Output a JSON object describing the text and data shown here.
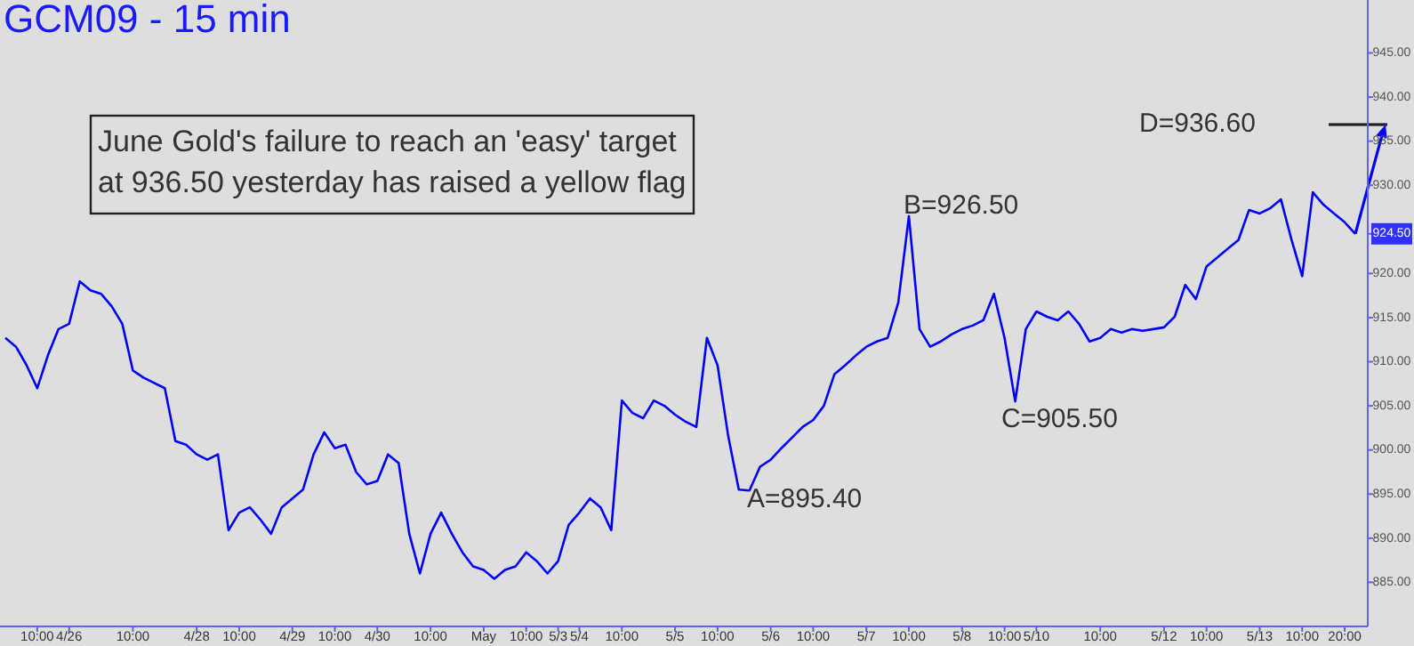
{
  "chart_data": {
    "type": "line",
    "title": "GCM09 - 15 min",
    "categories": [
      null,
      null,
      null,
      "10:00",
      null,
      null,
      "4/26",
      null,
      null,
      null,
      null,
      null,
      "10:00",
      null,
      null,
      null,
      null,
      null,
      "4/28",
      null,
      null,
      null,
      "10:00",
      null,
      null,
      null,
      null,
      "4/29",
      null,
      null,
      null,
      "10:00",
      null,
      null,
      null,
      "4/30",
      null,
      null,
      null,
      null,
      "10:00",
      null,
      null,
      null,
      null,
      "May",
      null,
      null,
      null,
      "10:00",
      null,
      null,
      "5/3",
      null,
      "5/4",
      null,
      null,
      null,
      "10:00",
      null,
      null,
      null,
      null,
      "5/5",
      null,
      null,
      null,
      "10:00",
      null,
      null,
      null,
      null,
      "5/6",
      null,
      null,
      null,
      "10:00",
      null,
      null,
      null,
      null,
      "5/7",
      null,
      null,
      null,
      "10:00",
      null,
      null,
      null,
      null,
      "5/8",
      null,
      null,
      null,
      "10:00",
      null,
      null,
      "5/10",
      null,
      null,
      null,
      null,
      null,
      "10:00",
      null,
      null,
      null,
      null,
      null,
      "5/12",
      null,
      null,
      null,
      "10:00",
      null,
      null,
      null,
      null,
      "5/13",
      null,
      null,
      null,
      "10:00",
      null,
      null,
      null,
      "20:00",
      null
    ],
    "values": [
      912.7,
      911.7,
      909.6,
      907.0,
      910.7,
      913.7,
      914.3,
      919.1,
      918.1,
      917.7,
      916.3,
      914.3,
      909.0,
      908.2,
      907.6,
      907.0,
      901.0,
      900.6,
      899.5,
      898.9,
      899.5,
      890.9,
      892.9,
      893.5,
      892.1,
      890.5,
      893.5,
      894.5,
      895.5,
      899.5,
      902.0,
      900.2,
      900.6,
      897.5,
      896.1,
      896.5,
      899.5,
      898.5,
      890.5,
      886.0,
      890.5,
      892.9,
      890.5,
      888.4,
      886.8,
      886.4,
      885.4,
      886.4,
      886.8,
      888.4,
      887.4,
      886.0,
      887.4,
      891.5,
      892.9,
      894.5,
      893.5,
      890.9,
      905.6,
      904.2,
      903.6,
      905.6,
      905.0,
      904.0,
      903.2,
      902.6,
      912.7,
      909.6,
      901.6,
      895.5,
      895.4,
      898.1,
      898.9,
      900.2,
      901.4,
      902.6,
      903.4,
      905.0,
      908.6,
      909.6,
      910.7,
      911.7,
      912.3,
      912.7,
      916.7,
      926.5,
      913.7,
      911.7,
      912.3,
      913.1,
      913.7,
      914.1,
      914.7,
      917.7,
      912.7,
      905.5,
      913.7,
      915.7,
      915.1,
      914.7,
      915.7,
      914.3,
      912.3,
      912.7,
      913.7,
      913.3,
      913.7,
      913.5,
      913.7,
      913.9,
      915.1,
      918.7,
      917.1,
      920.8,
      921.8,
      922.8,
      923.8,
      927.2,
      926.8,
      927.4,
      928.4,
      923.8,
      919.7,
      929.2,
      927.8,
      926.8,
      925.8,
      924.5
    ],
    "color": "#0000ff",
    "ylim": [
      880,
      951
    ],
    "yticks": [
      {
        "value": 885,
        "label": "885.00"
      },
      {
        "value": 890,
        "label": "890.00"
      },
      {
        "value": 895,
        "label": "895.00"
      },
      {
        "value": 900,
        "label": "900.00"
      },
      {
        "value": 905,
        "label": "905.00"
      },
      {
        "value": 910,
        "label": "910.00"
      },
      {
        "value": 915,
        "label": "915.00"
      },
      {
        "value": 920,
        "label": "920.00"
      },
      {
        "value": 924.5,
        "label": "924.50"
      },
      {
        "value": 930,
        "label": "930.00"
      },
      {
        "value": 935,
        "label": "935.00"
      },
      {
        "value": 940,
        "label": "940.00"
      },
      {
        "value": 945,
        "label": "945.00"
      }
    ],
    "annotations": [
      "June Gold's failure to reach an 'easy' target\nat 936.50 yesterday has raised a yellow flag",
      "A=895.40",
      "B=926.50",
      "C=905.50",
      "D=936.60"
    ]
  }
}
